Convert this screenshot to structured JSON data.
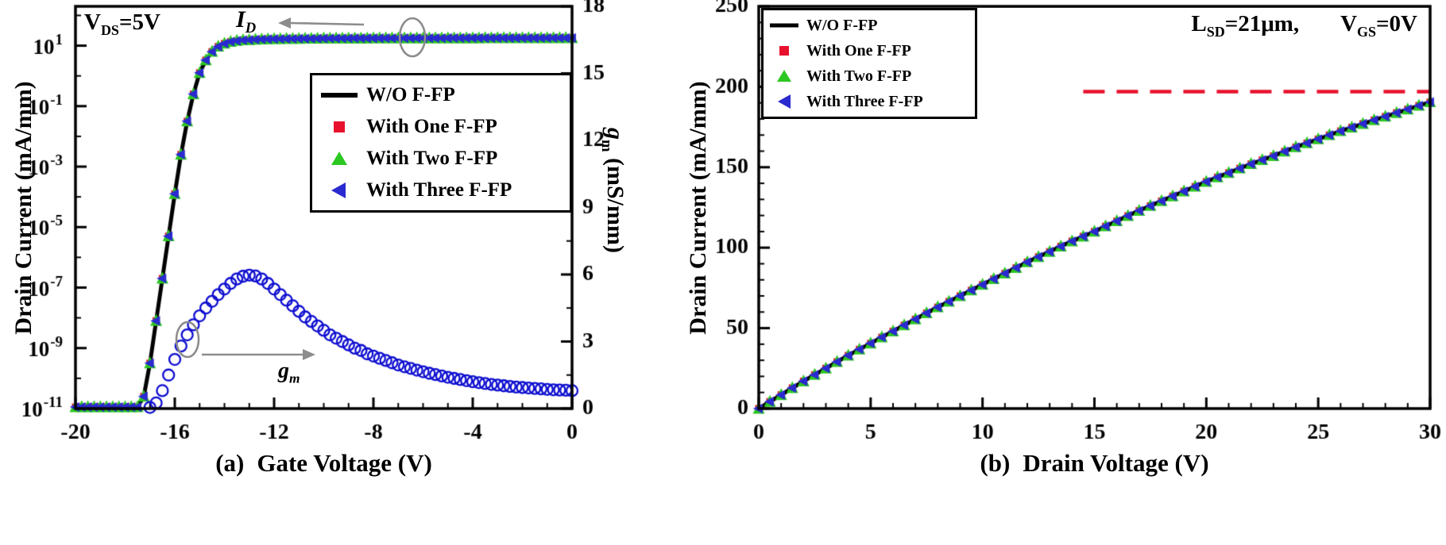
{
  "figure": {
    "legend": [
      "W/O F-FP",
      "With One F-FP",
      "With Two F-FP",
      "With Three F-FP"
    ],
    "panels": [
      {
        "tag": "(a)",
        "xlabel": "Gate Voltage (V)",
        "ylabel_left": "Drain Current (mA/mm)",
        "ylabel_right": {
          "base": "g",
          "sub": "m",
          "rest": " (mS/mm)"
        },
        "annotations": {
          "vds": {
            "base": "V",
            "sub": "DS",
            "rest": "=5V"
          },
          "id": {
            "base": "I",
            "sub": "D",
            "rest": ""
          },
          "gm": {
            "base": "g",
            "sub": "m",
            "rest": ""
          }
        }
      },
      {
        "tag": "(b)",
        "xlabel": "Drain Voltage (V)",
        "ylabel_left": "Drain Current (mA/mm)",
        "annotations": {
          "lsd": {
            "base": "L",
            "sub": "SD",
            "rest": "=21μm,"
          },
          "vgs": {
            "base": "V",
            "sub": "GS",
            "rest": "=0V"
          }
        }
      }
    ]
  },
  "chart_data": [
    {
      "type": "line",
      "title": "",
      "xlabel": "(a) Gate Voltage (V)",
      "ylabel_left": "Drain Current (mA/mm)",
      "ylabel_right": "gm (mS/mm)",
      "x_range": [
        -20,
        0
      ],
      "x_ticks": [
        -20,
        -16,
        -12,
        -8,
        -4,
        0
      ],
      "x_minor_step": 1,
      "y_left": {
        "scale": "log",
        "range_log10": [
          -11,
          2.3
        ],
        "tick_exponents": [
          1,
          -1,
          -3,
          -5,
          -7,
          -9,
          -11
        ],
        "minor_exponents": [
          2,
          0,
          -2,
          -4,
          -6,
          -8,
          -10
        ]
      },
      "y_right": {
        "range": [
          0,
          18
        ],
        "ticks": [
          0,
          3,
          6,
          9,
          12,
          15,
          18
        ],
        "minor_step": 1.5
      },
      "series": [
        {
          "name": "W/O F-FP",
          "style": "line",
          "color": "#000000",
          "axis": "left"
        },
        {
          "name": "With One F-FP",
          "style": "scatter",
          "marker": "square",
          "color": "#e8112d",
          "axis": "left"
        },
        {
          "name": "With Two F-FP",
          "style": "scatter",
          "marker": "triangle-up",
          "color": "#2cc721",
          "axis": "left"
        },
        {
          "name": "With Three F-FP",
          "style": "scatter",
          "marker": "triangle-left",
          "color": "#2a2ad0",
          "axis": "left"
        }
      ],
      "transfer_curve": {
        "x": [
          -20,
          -19.75,
          -19.5,
          -19.25,
          -19,
          -18.75,
          -18.5,
          -18.25,
          -18,
          -17.75,
          -17.5,
          -17.25,
          -17,
          -16.75,
          -16.5,
          -16.25,
          -16,
          -15.75,
          -15.5,
          -15.25,
          -15,
          -14.75,
          -14.5,
          -14.25,
          -14,
          -13.75,
          -13.5,
          -13.25,
          -13,
          -12.75,
          -12.5,
          -12.25,
          -12,
          -11.75,
          -11.5,
          -11.25,
          -11,
          -10.75,
          -10.5,
          -10.25,
          -10,
          -9.75,
          -9.5,
          -9.25,
          -9,
          -8.75,
          -8.5,
          -8.25,
          -8,
          -7.75,
          -7.5,
          -7.25,
          -7,
          -6.75,
          -6.5,
          -6.25,
          -6,
          -5.75,
          -5.5,
          -5.25,
          -5,
          -4.75,
          -4.5,
          -4.25,
          -4,
          -3.75,
          -3.5,
          -3.25,
          -3,
          -2.75,
          -2.5,
          -2.25,
          -2,
          -1.75,
          -1.5,
          -1.25,
          -1,
          -0.75,
          -0.5,
          -0.25,
          0
        ],
        "log10_id": [
          -10.95,
          -10.95,
          -10.95,
          -10.95,
          -10.95,
          -10.95,
          -10.95,
          -10.95,
          -10.95,
          -10.95,
          -10.95,
          -10.6,
          -9.5,
          -8.1,
          -6.7,
          -5.3,
          -3.9,
          -2.6,
          -1.5,
          -0.6,
          0.1,
          0.52,
          0.8,
          0.97,
          1.07,
          1.13,
          1.16,
          1.18,
          1.19,
          1.2,
          1.21,
          1.215,
          1.22,
          1.222,
          1.225,
          1.227,
          1.23,
          1.232,
          1.234,
          1.236,
          1.238,
          1.239,
          1.24,
          1.241,
          1.242,
          1.243,
          1.244,
          1.244,
          1.245,
          1.245,
          1.246,
          1.246,
          1.247,
          1.247,
          1.248,
          1.248,
          1.248,
          1.249,
          1.249,
          1.249,
          1.25,
          1.25,
          1.25,
          1.25,
          1.25,
          1.25,
          1.251,
          1.251,
          1.251,
          1.251,
          1.252,
          1.252,
          1.252,
          1.252,
          1.252,
          1.253,
          1.253,
          1.253,
          1.253,
          1.253,
          1.253
        ]
      },
      "gm_curve": {
        "name": "gm",
        "marker": "circle-open",
        "color": "#0d0dd0",
        "axis": "right",
        "x": [
          -17,
          -16.75,
          -16.5,
          -16.25,
          -16,
          -15.75,
          -15.5,
          -15.25,
          -15,
          -14.75,
          -14.5,
          -14.25,
          -14,
          -13.75,
          -13.5,
          -13.25,
          -13,
          -12.75,
          -12.5,
          -12.25,
          -12,
          -11.75,
          -11.5,
          -11.25,
          -11,
          -10.75,
          -10.5,
          -10.25,
          -10,
          -9.75,
          -9.5,
          -9.25,
          -9,
          -8.75,
          -8.5,
          -8.25,
          -8,
          -7.75,
          -7.5,
          -7.25,
          -7,
          -6.75,
          -6.5,
          -6.25,
          -6,
          -5.75,
          -5.5,
          -5.25,
          -5,
          -4.75,
          -4.5,
          -4.25,
          -4,
          -3.75,
          -3.5,
          -3.25,
          -3,
          -2.75,
          -2.5,
          -2.25,
          -2,
          -1.75,
          -1.5,
          -1.25,
          -1,
          -0.75,
          -0.5,
          -0.25,
          0
        ],
        "y": [
          0.05,
          0.25,
          0.8,
          1.5,
          2.2,
          2.8,
          3.3,
          3.75,
          4.15,
          4.5,
          4.8,
          5.1,
          5.35,
          5.6,
          5.8,
          5.92,
          5.97,
          5.93,
          5.8,
          5.6,
          5.35,
          5.1,
          4.85,
          4.6,
          4.35,
          4.1,
          3.9,
          3.7,
          3.5,
          3.3,
          3.15,
          3.0,
          2.85,
          2.7,
          2.6,
          2.45,
          2.35,
          2.25,
          2.15,
          2.05,
          1.95,
          1.87,
          1.8,
          1.72,
          1.65,
          1.58,
          1.52,
          1.46,
          1.4,
          1.35,
          1.3,
          1.25,
          1.2,
          1.16,
          1.12,
          1.08,
          1.05,
          1.02,
          0.99,
          0.96,
          0.94,
          0.92,
          0.9,
          0.88,
          0.86,
          0.84,
          0.83,
          0.82,
          0.8
        ]
      }
    },
    {
      "type": "line",
      "title": "",
      "xlabel": "(b) Drain Voltage (V)",
      "ylabel": "Drain Current (mA/mm)",
      "x_range": [
        0,
        30
      ],
      "x_ticks": [
        0,
        5,
        10,
        15,
        20,
        25,
        30
      ],
      "x_minor_step": 1,
      "y_range": [
        0,
        250
      ],
      "y_ticks": [
        0,
        50,
        100,
        150,
        200,
        250
      ],
      "y_minor_step": 10,
      "series": [
        {
          "name": "W/O F-FP",
          "style": "line",
          "color": "#000000"
        },
        {
          "name": "With One F-FP",
          "style": "scatter",
          "marker": "square",
          "color": "#e8112d"
        },
        {
          "name": "With Two F-FP",
          "style": "scatter",
          "marker": "triangle-up",
          "color": "#2cc721"
        },
        {
          "name": "With Three F-FP",
          "style": "scatter",
          "marker": "triangle-left",
          "color": "#2a2ad0"
        }
      ],
      "output_curve": {
        "x": [
          0,
          0.5,
          1,
          1.5,
          2,
          2.5,
          3,
          3.5,
          4,
          4.5,
          5,
          5.5,
          6,
          6.5,
          7,
          7.5,
          8,
          8.5,
          9,
          9.5,
          10,
          10.5,
          11,
          11.5,
          12,
          12.5,
          13,
          13.5,
          14,
          14.5,
          15,
          15.5,
          16,
          16.5,
          17,
          17.5,
          18,
          18.5,
          19,
          19.5,
          20,
          20.5,
          21,
          21.5,
          22,
          22.5,
          23,
          23.5,
          24,
          24.5,
          25,
          25.5,
          26,
          26.5,
          27,
          27.5,
          28,
          28.5,
          29,
          29.5,
          30
        ],
        "y": [
          0,
          4.3,
          8.5,
          12.8,
          17,
          21,
          25,
          29,
          33,
          36.8,
          40.5,
          44.3,
          48,
          51.8,
          55.5,
          59.3,
          63,
          66.5,
          70,
          73.5,
          77,
          80.5,
          84,
          87.5,
          91,
          94.3,
          97.5,
          100.8,
          104,
          107,
          110,
          113.3,
          116.5,
          119.8,
          123,
          126,
          129,
          132,
          135,
          138,
          141,
          143.8,
          146.5,
          149.3,
          152,
          154.5,
          157,
          159.8,
          162.5,
          165,
          167.5,
          170,
          172.5,
          174.8,
          177,
          179.3,
          181.5,
          183.8,
          186,
          188.3,
          190.5
        ]
      },
      "reference_line": {
        "y": 197,
        "x_start": 14.5,
        "x_end": 30,
        "color": "#e8112d",
        "style": "dashed"
      }
    }
  ]
}
